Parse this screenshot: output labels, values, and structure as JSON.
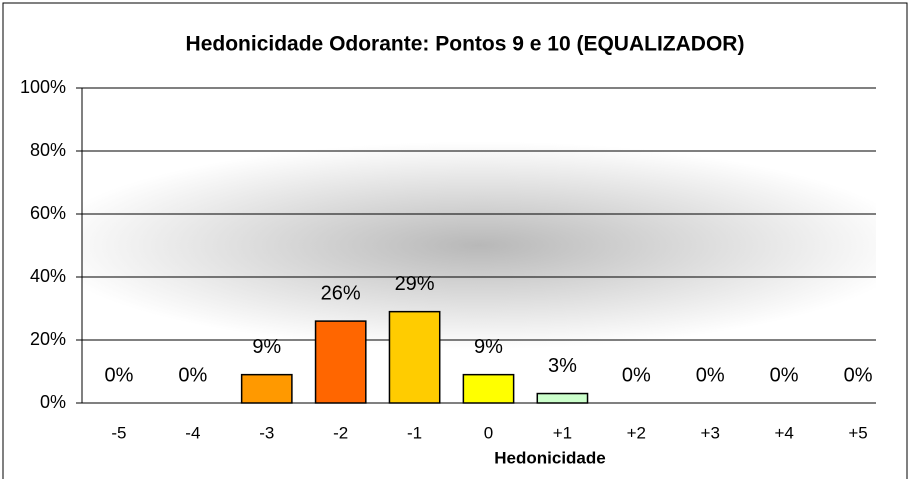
{
  "chart_data": {
    "type": "bar",
    "title": "Hedonicidade Odorante: Pontos 9 e 10 (EQUALIZADOR)",
    "x_label": "Hedonicidade",
    "categories": [
      "-5",
      "-4",
      "-3",
      "-2",
      "-1",
      "0",
      "+1",
      "+2",
      "+3",
      "+4",
      "+5"
    ],
    "values": [
      0,
      0,
      9,
      26,
      29,
      9,
      3,
      0,
      0,
      0,
      0
    ],
    "value_labels": [
      "0%",
      "0%",
      "9%",
      "26%",
      "29%",
      "9%",
      "3%",
      "0%",
      "0%",
      "0%",
      "0%"
    ],
    "colors": [
      "#c0c0c0",
      "#c0c0c0",
      "#ff9900",
      "#ff6600",
      "#ffcc00",
      "#ffff00",
      "#ccffcc",
      "#c0c0c0",
      "#c0c0c0",
      "#c0c0c0",
      "#c0c0c0"
    ],
    "ylim": [
      0,
      100
    ],
    "yticks": [
      {
        "value": 0,
        "label": "0%"
      },
      {
        "value": 20,
        "label": "20%"
      },
      {
        "value": 40,
        "label": "40%"
      },
      {
        "value": 60,
        "label": "60%"
      },
      {
        "value": 80,
        "label": "80%"
      },
      {
        "value": 100,
        "label": "100%"
      }
    ],
    "grid": true
  }
}
